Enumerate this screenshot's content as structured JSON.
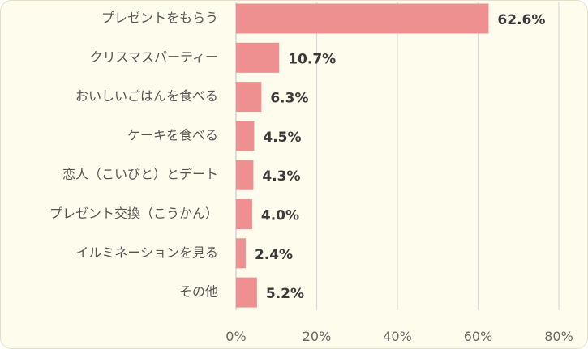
{
  "colors": {
    "bar": "#ee9090",
    "gridline": "#d9d9d9",
    "axis": "#c8c8c8",
    "background": "#fefcec"
  },
  "chart_data": {
    "type": "bar",
    "orientation": "horizontal",
    "categories": [
      "プレゼントをもらう",
      "クリスマスパーティー",
      "おいしいごはんを食べる",
      "ケーキを食べる",
      "恋人（こいびと）とデート",
      "プレゼント交換（こうかん）",
      "イルミネーションを見る",
      "その他"
    ],
    "values": [
      62.6,
      10.7,
      6.3,
      4.5,
      4.3,
      4.0,
      2.4,
      5.2
    ],
    "value_labels": [
      "62.6%",
      "10.7%",
      "6.3%",
      "4.5%",
      "4.3%",
      "4.0%",
      "2.4%",
      "5.2%"
    ],
    "xlim": [
      0,
      80
    ],
    "xticks": [
      0,
      20,
      40,
      60,
      80
    ],
    "xtick_labels": [
      "0%",
      "20%",
      "40%",
      "60%",
      "80%"
    ],
    "grid": true,
    "legend": "none"
  }
}
